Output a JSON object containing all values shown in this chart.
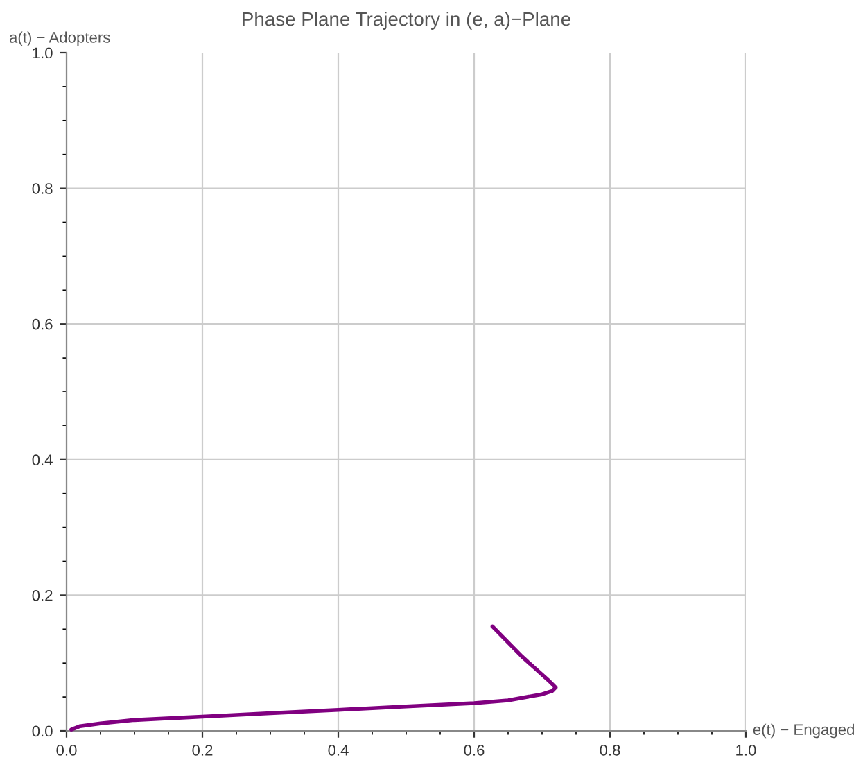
{
  "chart_data": {
    "type": "line",
    "title": "Phase Plane Trajectory in (e, a)−Plane",
    "xlabel": "e(t) − Engaged",
    "ylabel": "a(t) − Adopters",
    "x": [
      0.007,
      0.02,
      0.05,
      0.1,
      0.2,
      0.3,
      0.4,
      0.5,
      0.6,
      0.65,
      0.7,
      0.715,
      0.72,
      0.71,
      0.67,
      0.627
    ],
    "series": [
      {
        "color": "#800080",
        "values": [
          0.002,
          0.007,
          0.011,
          0.016,
          0.021,
          0.026,
          0.031,
          0.036,
          0.041,
          0.045,
          0.054,
          0.059,
          0.064,
          0.074,
          0.11,
          0.154
        ]
      }
    ],
    "xlim": [
      0,
      1
    ],
    "ylim": [
      0,
      1
    ],
    "xticks": [
      {
        "value": 0,
        "label": "0.0"
      },
      0.2,
      0.4,
      0.6,
      0.8,
      {
        "value": 1,
        "label": "1.0"
      }
    ],
    "yticks": [
      {
        "value": 0,
        "label": "0.0"
      },
      0.2,
      0.4,
      0.6,
      0.8,
      {
        "value": 1,
        "label": "1.0"
      }
    ],
    "grid": true,
    "marker": "none",
    "line_style": "solid"
  }
}
